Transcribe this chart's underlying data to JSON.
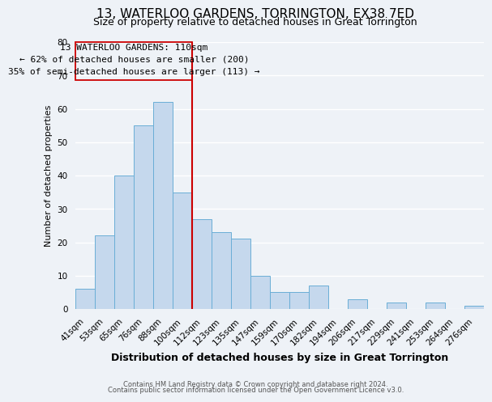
{
  "title": "13, WATERLOO GARDENS, TORRINGTON, EX38 7ED",
  "subtitle": "Size of property relative to detached houses in Great Torrington",
  "xlabel": "Distribution of detached houses by size in Great Torrington",
  "ylabel": "Number of detached properties",
  "bar_labels": [
    "41sqm",
    "53sqm",
    "65sqm",
    "76sqm",
    "88sqm",
    "100sqm",
    "112sqm",
    "123sqm",
    "135sqm",
    "147sqm",
    "159sqm",
    "170sqm",
    "182sqm",
    "194sqm",
    "206sqm",
    "217sqm",
    "229sqm",
    "241sqm",
    "253sqm",
    "264sqm",
    "276sqm"
  ],
  "bar_values": [
    6,
    22,
    40,
    55,
    62,
    35,
    27,
    23,
    21,
    10,
    5,
    5,
    7,
    0,
    3,
    0,
    2,
    0,
    2,
    0,
    1
  ],
  "ylim": [
    0,
    80
  ],
  "yticks": [
    0,
    10,
    20,
    30,
    40,
    50,
    60,
    70,
    80
  ],
  "bar_color": "#c5d8ed",
  "bar_edge_color": "#6aaed6",
  "vline_color": "#cc0000",
  "annotation_line1": "13 WATERLOO GARDENS: 110sqm",
  "annotation_line2": "← 62% of detached houses are smaller (200)",
  "annotation_line3": "35% of semi-detached houses are larger (113) →",
  "annotation_box_color": "#cc0000",
  "footnote1": "Contains HM Land Registry data © Crown copyright and database right 2024.",
  "footnote2": "Contains public sector information licensed under the Open Government Licence v3.0.",
  "bg_color": "#eef2f7",
  "grid_color": "#ffffff",
  "title_fontsize": 11,
  "subtitle_fontsize": 9,
  "xlabel_fontsize": 9,
  "ylabel_fontsize": 8,
  "tick_fontsize": 7.5,
  "annotation_fontsize": 8,
  "footnote_fontsize": 6
}
